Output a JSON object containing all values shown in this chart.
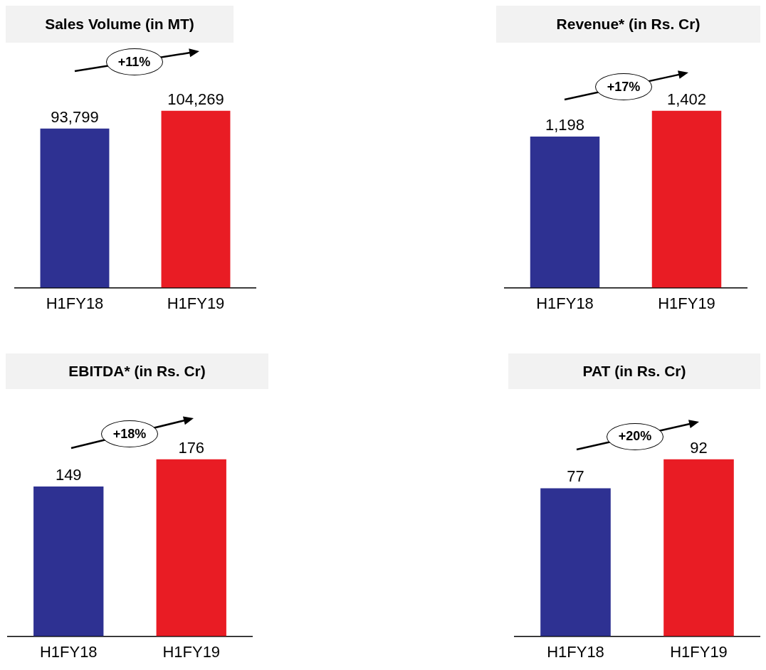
{
  "chart_data": [
    {
      "type": "bar",
      "title": "Sales Volume (in MT)",
      "categories": [
        "H1FY18",
        "H1FY19"
      ],
      "values": [
        93799,
        104269
      ],
      "value_labels": [
        "93,799",
        "104,269"
      ],
      "colors": [
        "#2e3192",
        "#e91c24"
      ],
      "annotations": [
        "+11%"
      ]
    },
    {
      "type": "bar",
      "title": "Revenue* (in Rs. Cr)",
      "categories": [
        "H1FY18",
        "H1FY19"
      ],
      "values": [
        1198,
        1402
      ],
      "value_labels": [
        "1,198",
        "1,402"
      ],
      "colors": [
        "#2e3192",
        "#e91c24"
      ],
      "annotations": [
        "+17%"
      ]
    },
    {
      "type": "bar",
      "title": "EBITDA* (in Rs. Cr)",
      "categories": [
        "H1FY18",
        "H1FY19"
      ],
      "values": [
        149,
        176
      ],
      "value_labels": [
        "149",
        "176"
      ],
      "colors": [
        "#2e3192",
        "#e91c24"
      ],
      "annotations": [
        "+18%"
      ]
    },
    {
      "type": "bar",
      "title": "PAT (in Rs. Cr)",
      "categories": [
        "H1FY18",
        "H1FY19"
      ],
      "values": [
        77,
        92
      ],
      "value_labels": [
        "77",
        "92"
      ],
      "colors": [
        "#2e3192",
        "#e91c24"
      ],
      "annotations": [
        "+20%"
      ]
    }
  ]
}
